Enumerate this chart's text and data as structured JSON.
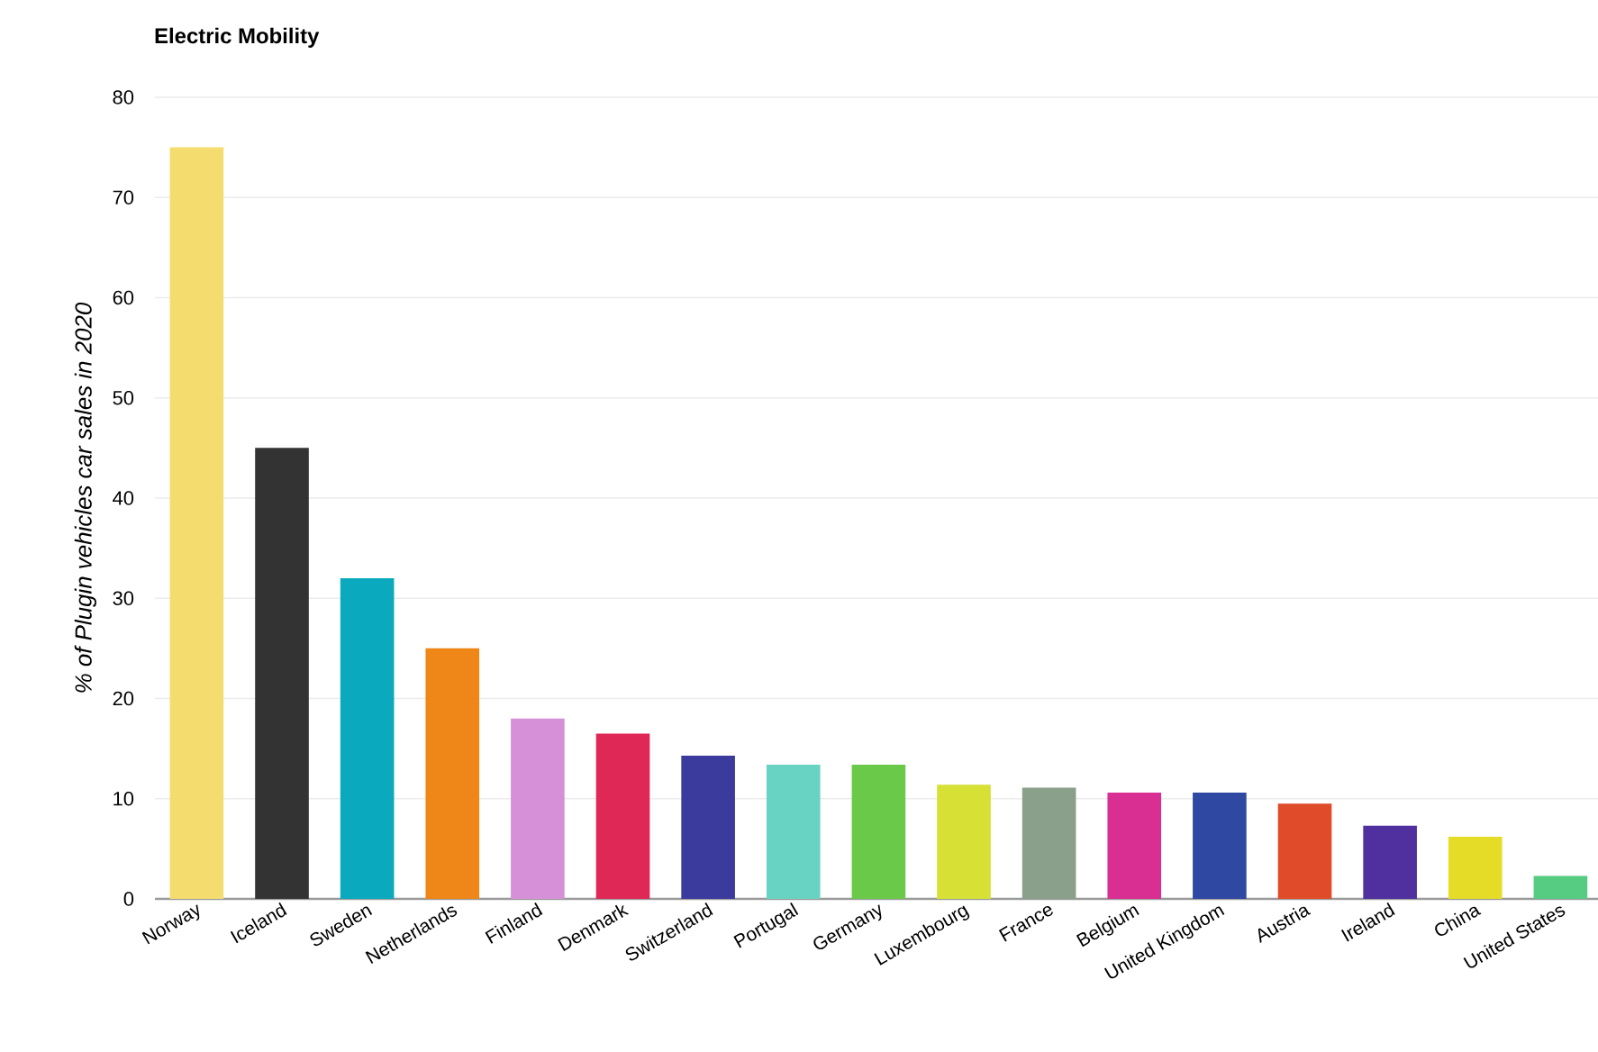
{
  "chart_data": {
    "type": "bar",
    "title": "Electric Mobility",
    "ylabel": "% of Plugin vehicles car sales in 2020",
    "categories": [
      "Norway",
      "Iceland",
      "Sweden",
      "Netherlands",
      "Finland",
      "Denmark",
      "Switzerland",
      "Portugal",
      "Germany",
      "Luxembourg",
      "France",
      "Belgium",
      "United Kingdom",
      "Austria",
      "Ireland",
      "China",
      "United States"
    ],
    "values": [
      75,
      45,
      32,
      25,
      18,
      16.5,
      14.3,
      13.4,
      13.4,
      11.4,
      11.1,
      10.6,
      10.6,
      9.5,
      7.3,
      6.2,
      2.3
    ],
    "colors": [
      "#f5dc6e",
      "#333333",
      "#0aa9bd",
      "#ee8618",
      "#d690d8",
      "#e02857",
      "#3b3a9d",
      "#68d3c2",
      "#6bc94a",
      "#d6e035",
      "#8aa08a",
      "#d92f92",
      "#2f48a2",
      "#e04b2a",
      "#50309e",
      "#e5dc28",
      "#55cc82"
    ],
    "ylim": [
      0,
      80
    ],
    "yticks": [
      0,
      10,
      20,
      30,
      40,
      50,
      60,
      70,
      80
    ],
    "grid": "y"
  }
}
